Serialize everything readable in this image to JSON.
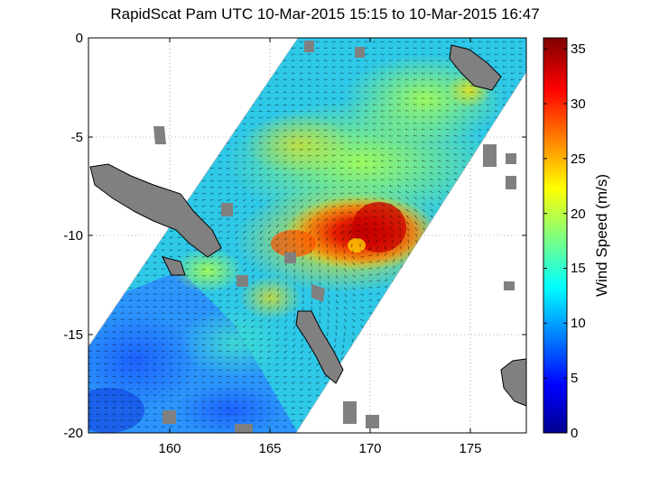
{
  "title": "RapidScat Pam UTC 10-Mar-2015 15:15 to 10-Mar-2015 16:47",
  "x_axis": {
    "ticks": [
      "160",
      "165",
      "170",
      "175"
    ]
  },
  "y_axis": {
    "ticks": [
      "0",
      "-5",
      "-10",
      "-15",
      "-20"
    ]
  },
  "colorbar": {
    "label": "Wind Speed (m/s)",
    "ticks": [
      "0",
      "5",
      "10",
      "15",
      "20",
      "25",
      "30",
      "35"
    ],
    "min": 0,
    "max": 36,
    "colormap": "jet"
  },
  "map": {
    "lon_range": [
      156,
      178
    ],
    "lat_range": [
      -20,
      0
    ],
    "storm_center_lon": 169.8,
    "storm_center_lat": -10.4
  }
}
